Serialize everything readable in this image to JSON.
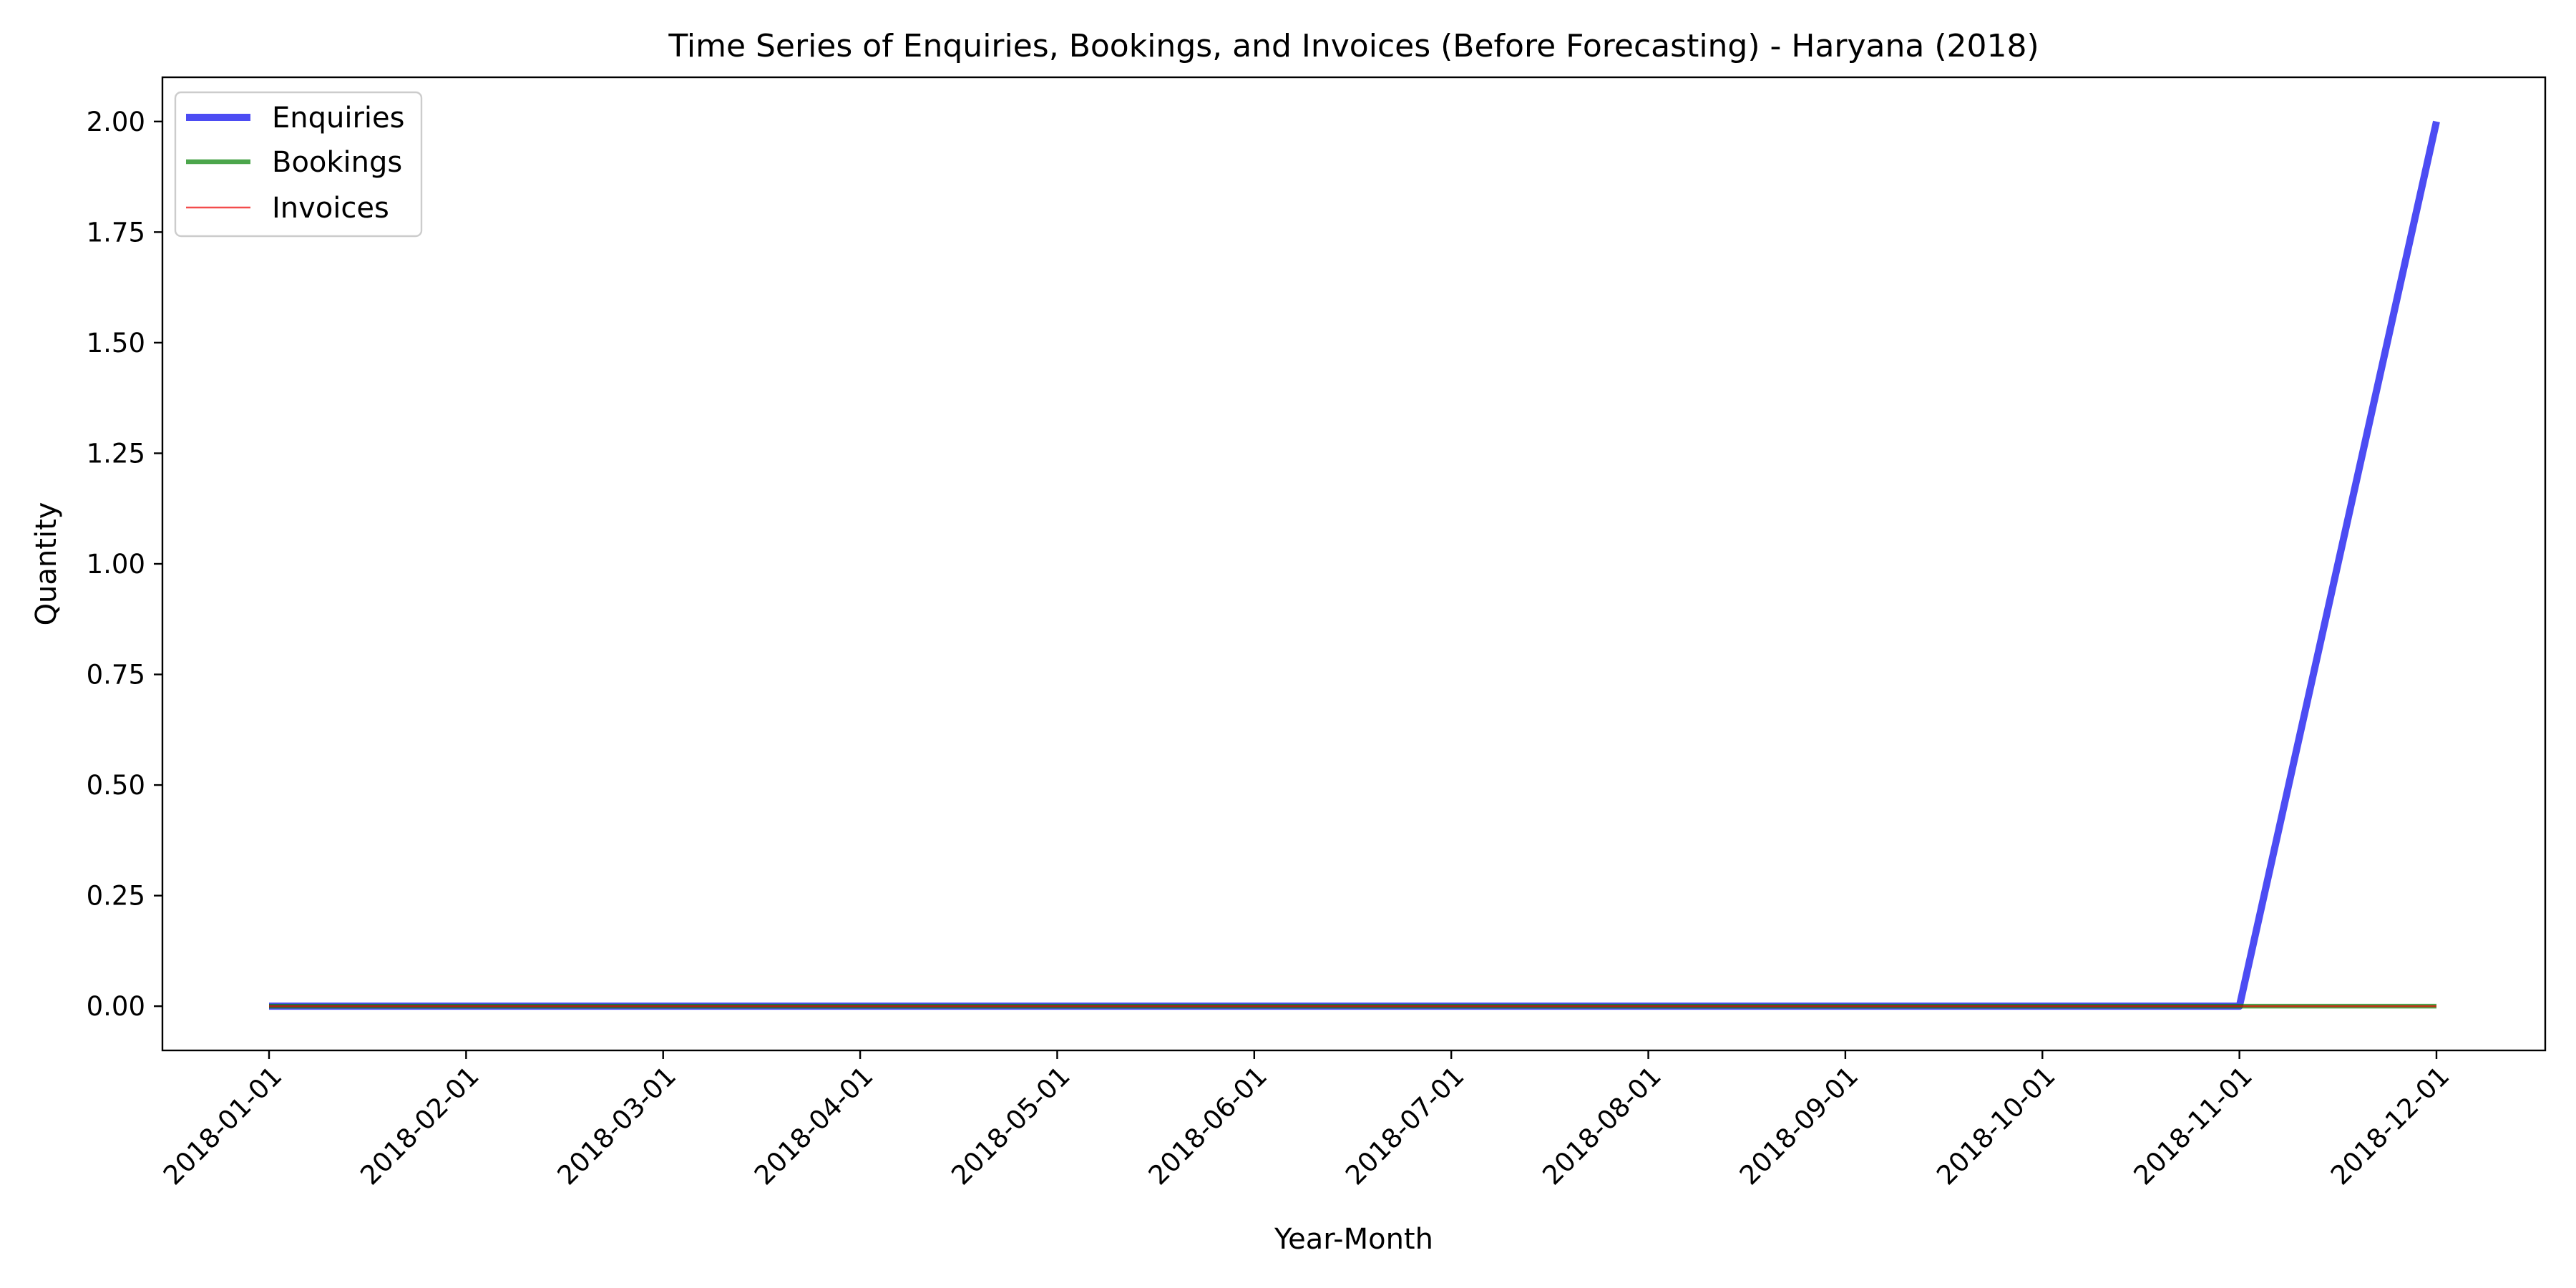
{
  "chart_data": {
    "type": "line",
    "title": "Time Series of Enquiries, Bookings, and Invoices (Before Forecasting) - Haryana (2018)",
    "xlabel": "Year-Month",
    "ylabel": "Quantity",
    "x": [
      "2018-01-01",
      "2018-02-01",
      "2018-03-01",
      "2018-04-01",
      "2018-05-01",
      "2018-06-01",
      "2018-07-01",
      "2018-08-01",
      "2018-09-01",
      "2018-10-01",
      "2018-11-01",
      "2018-12-01"
    ],
    "ylim": [
      -0.1,
      2.1
    ],
    "yticks": [
      "0.00",
      "0.25",
      "0.50",
      "0.75",
      "1.00",
      "1.25",
      "1.50",
      "1.75",
      "2.00"
    ],
    "ytick_values": [
      0,
      0.25,
      0.5,
      0.75,
      1.0,
      1.25,
      1.5,
      1.75,
      2.0
    ],
    "grid": false,
    "legend_position": "top-left",
    "series": [
      {
        "name": "Enquiries",
        "values": [
          0,
          0,
          0,
          0,
          0,
          0,
          0,
          0,
          0,
          0,
          0,
          2
        ],
        "color": "#0000ee",
        "opacity": 0.7,
        "width": 10
      },
      {
        "name": "Bookings",
        "values": [
          0,
          0,
          0,
          0,
          0,
          0,
          0,
          0,
          0,
          0,
          0,
          0
        ],
        "color": "#008000",
        "opacity": 0.7,
        "width": 6.5
      },
      {
        "name": "Invoices",
        "values": [
          0,
          0,
          0,
          0,
          0,
          0,
          0,
          0,
          0,
          0,
          0,
          0
        ],
        "color": "#ee0000",
        "opacity": 0.7,
        "width": 2.6
      }
    ]
  }
}
